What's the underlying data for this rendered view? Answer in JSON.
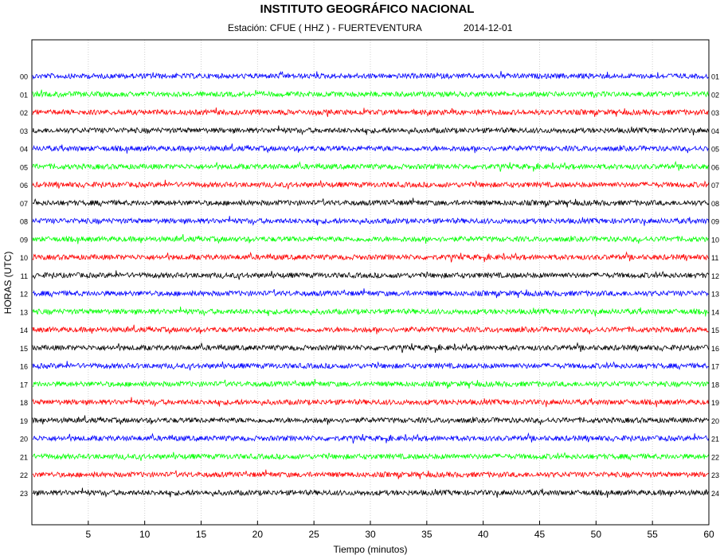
{
  "header": {
    "title": "INSTITUTO GEOGRÁFICO NACIONAL",
    "station": "Estación:  CFUE ( HHZ ) - FUERTEVENTURA",
    "date": "2014-12-01"
  },
  "chart_data": {
    "type": "line",
    "title": "INSTITUTO GEOGRÁFICO NACIONAL",
    "xlabel": "Tiempo (minutos)",
    "ylabel": "HORAS (UTC)",
    "xlim": [
      0,
      60
    ],
    "x_ticks": [
      5,
      10,
      15,
      20,
      25,
      30,
      35,
      40,
      45,
      50,
      55,
      60
    ],
    "left_hour_labels": [
      "00",
      "01",
      "02",
      "03",
      "04",
      "05",
      "06",
      "07",
      "08",
      "09",
      "10",
      "11",
      "12",
      "13",
      "14",
      "15",
      "16",
      "17",
      "18",
      "19",
      "20",
      "21",
      "22",
      "23"
    ],
    "right_hour_labels": [
      "01",
      "02",
      "03",
      "04",
      "05",
      "06",
      "07",
      "08",
      "09",
      "10",
      "11",
      "12",
      "13",
      "14",
      "15",
      "16",
      "17",
      "18",
      "19",
      "20",
      "21",
      "22",
      "23",
      "24"
    ],
    "trace_colors": [
      "#0000ff",
      "#00ff00",
      "#ff0000",
      "#000000"
    ],
    "grid": "vertical dotted at x ticks"
  }
}
